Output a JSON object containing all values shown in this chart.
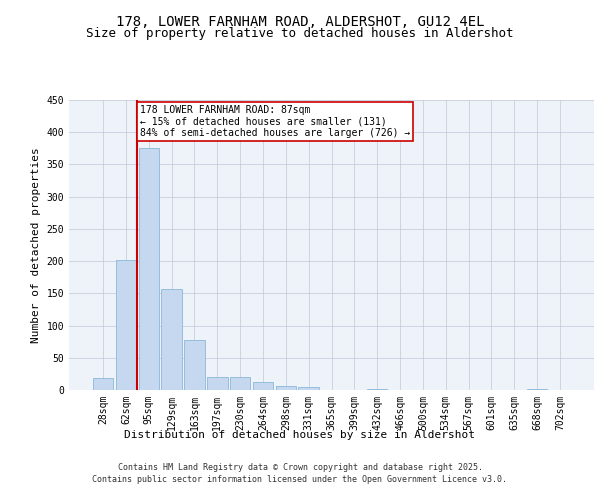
{
  "title_line1": "178, LOWER FARNHAM ROAD, ALDERSHOT, GU12 4EL",
  "title_line2": "Size of property relative to detached houses in Aldershot",
  "xlabel": "Distribution of detached houses by size in Aldershot",
  "ylabel": "Number of detached properties",
  "categories": [
    "28sqm",
    "62sqm",
    "95sqm",
    "129sqm",
    "163sqm",
    "197sqm",
    "230sqm",
    "264sqm",
    "298sqm",
    "331sqm",
    "365sqm",
    "399sqm",
    "432sqm",
    "466sqm",
    "500sqm",
    "534sqm",
    "567sqm",
    "601sqm",
    "635sqm",
    "668sqm",
    "702sqm"
  ],
  "values": [
    18,
    202,
    375,
    157,
    78,
    20,
    20,
    13,
    6,
    4,
    0,
    0,
    2,
    0,
    0,
    0,
    0,
    0,
    0,
    2,
    0
  ],
  "bar_color": "#c5d8f0",
  "bar_edge_color": "#7bafd4",
  "annotation_text": "178 LOWER FARNHAM ROAD: 87sqm\n← 15% of detached houses are smaller (131)\n84% of semi-detached houses are larger (726) →",
  "annotation_box_color": "#ffffff",
  "annotation_box_edge": "#cc0000",
  "vline_color": "#cc0000",
  "ylim": [
    0,
    450
  ],
  "yticks": [
    0,
    50,
    100,
    150,
    200,
    250,
    300,
    350,
    400,
    450
  ],
  "bg_color": "#eef3fa",
  "footer_line1": "Contains HM Land Registry data © Crown copyright and database right 2025.",
  "footer_line2": "Contains public sector information licensed under the Open Government Licence v3.0.",
  "title_fontsize": 10,
  "subtitle_fontsize": 9,
  "axis_label_fontsize": 8,
  "tick_fontsize": 7,
  "annotation_fontsize": 7,
  "footer_fontsize": 6
}
